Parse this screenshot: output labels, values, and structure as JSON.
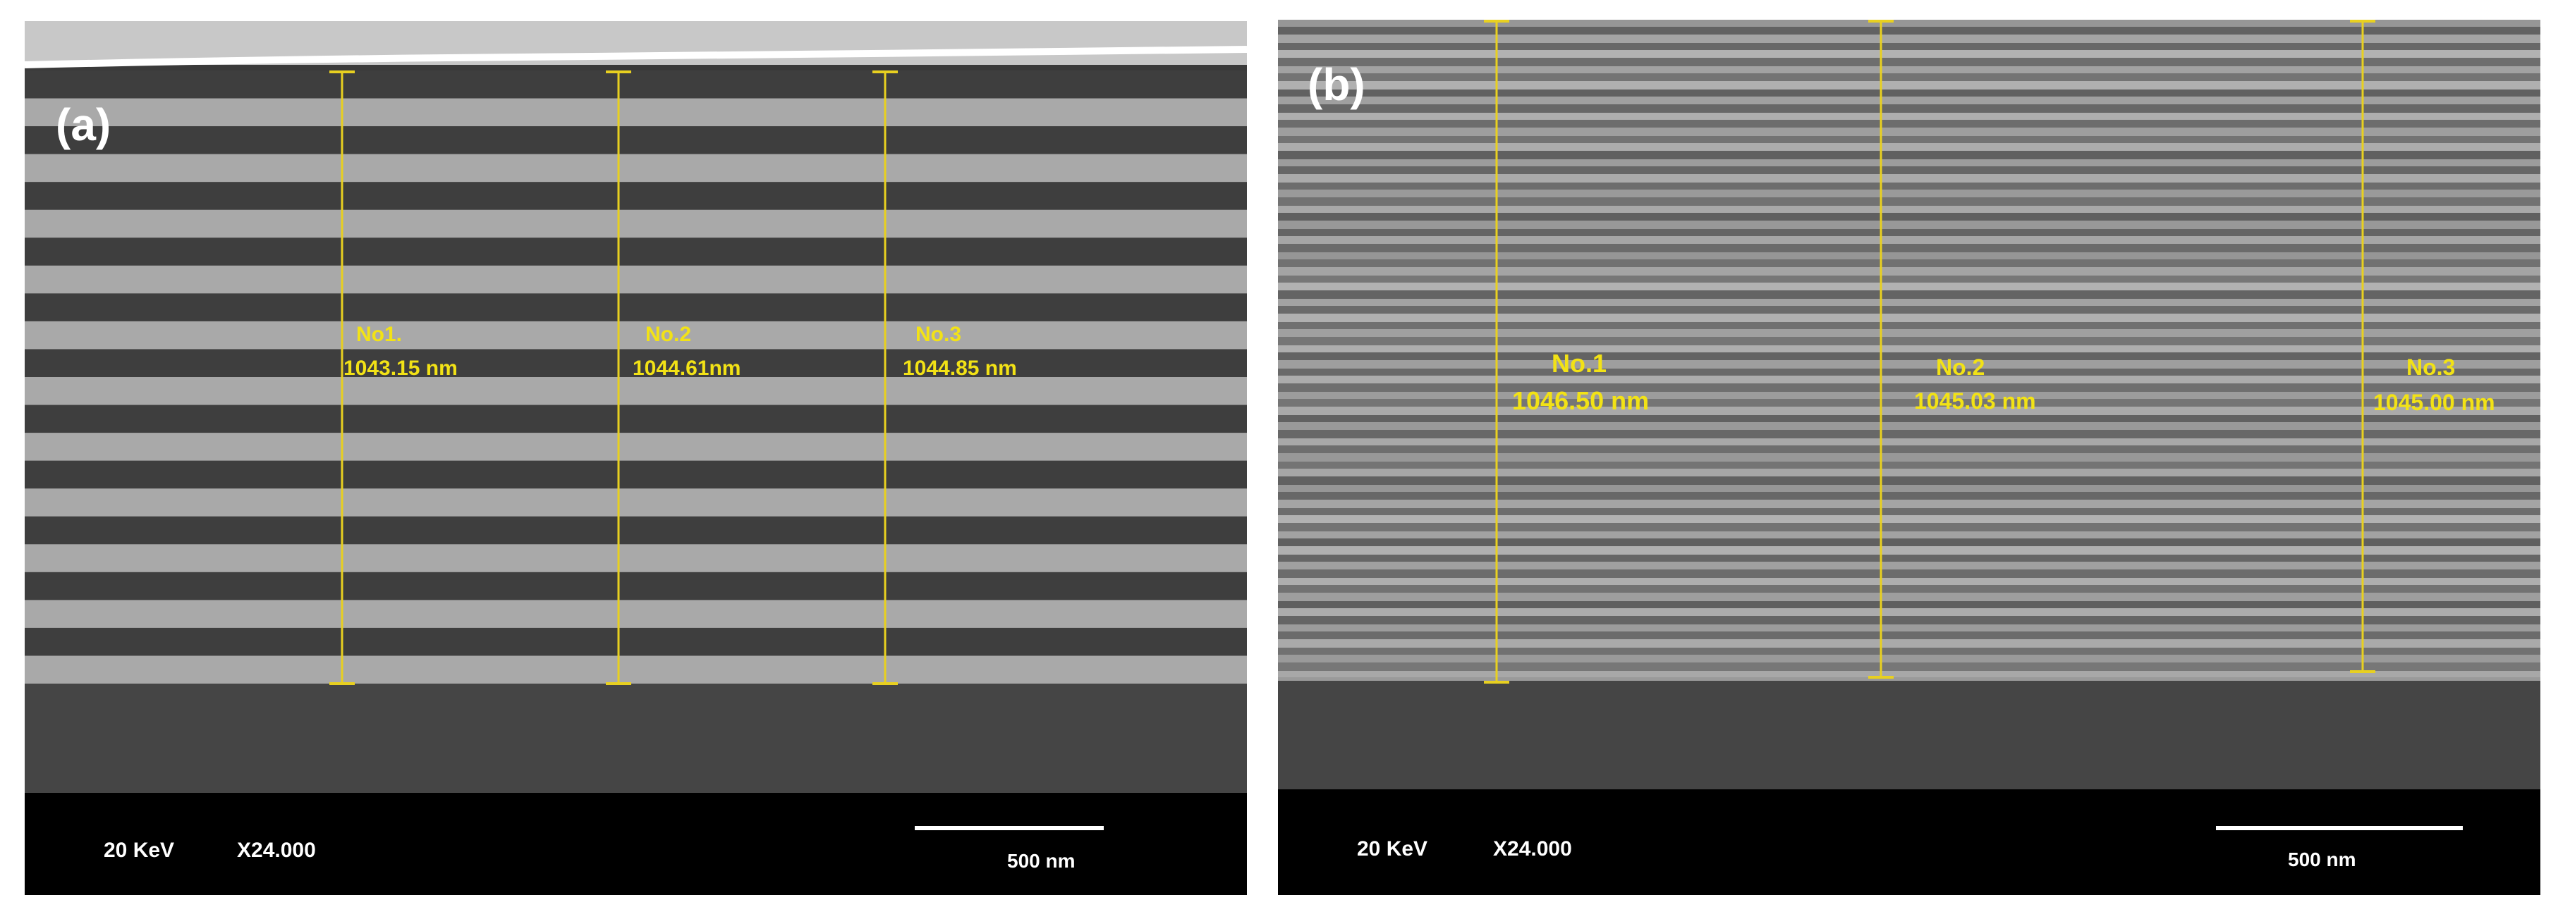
{
  "panel_a": {
    "label": "(a)",
    "measurements": [
      {
        "name": "No1.",
        "value": "1043.15 nm"
      },
      {
        "name": "No.2",
        "value": "1044.61nm"
      },
      {
        "name": "No.3",
        "value": "1044.85 nm"
      }
    ],
    "voltage": "20 KeV",
    "magnification": "X24.000",
    "scale_bar": "500 nm"
  },
  "panel_b": {
    "label": "(b)",
    "measurements": [
      {
        "name": "No.1",
        "value": "1046.50 nm"
      },
      {
        "name": "No.2",
        "value": "1045.03 nm"
      },
      {
        "name": "No.3",
        "value": "1045.00 nm"
      }
    ],
    "voltage": "20 KeV",
    "magnification": "X24.000",
    "scale_bar": "500 nm"
  },
  "colors": {
    "measure_line": "#e8d020",
    "layer_dark": "#3e3e3e",
    "layer_light": "#a9a9a9",
    "substrate": "#454545",
    "info_bar": "#000000"
  }
}
